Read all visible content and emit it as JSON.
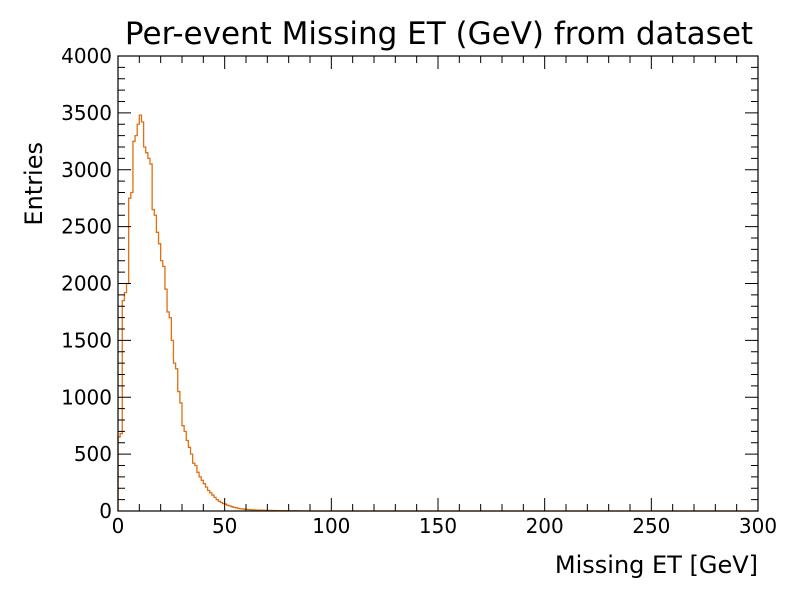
{
  "chart_data": {
    "type": "histogram",
    "title": "Per-event Missing ET (GeV) from dataset",
    "xlabel": "Missing ET [GeV]",
    "ylabel": "Entries",
    "xlim": [
      0,
      300
    ],
    "ylim": [
      0,
      4000
    ],
    "xticks": [
      0,
      50,
      100,
      150,
      200,
      250,
      300
    ],
    "yticks": [
      0,
      500,
      1000,
      1500,
      2000,
      2500,
      3000,
      3500,
      4000
    ],
    "grid": false,
    "legend": "none",
    "series": [
      {
        "color": "#e07010",
        "bin_width": 1,
        "x_start": 0,
        "values": [
          650,
          680,
          1850,
          1920,
          2000,
          2750,
          2800,
          3250,
          3300,
          3400,
          3480,
          3420,
          3200,
          3150,
          3100,
          3050,
          2650,
          2600,
          2450,
          2350,
          2200,
          2150,
          1950,
          1750,
          1700,
          1500,
          1300,
          1250,
          1050,
          950,
          750,
          700,
          620,
          560,
          500,
          420,
          400,
          340,
          300,
          270,
          240,
          210,
          180,
          160,
          140,
          120,
          100,
          85,
          75,
          65,
          60,
          50,
          45,
          38,
          32,
          28,
          24,
          20,
          18,
          16,
          14,
          12,
          11,
          10,
          9,
          8,
          7,
          7,
          6,
          6,
          5,
          5,
          4,
          4,
          4,
          3,
          3,
          3,
          3,
          2,
          2,
          2,
          2,
          2,
          2,
          1,
          1,
          1,
          1,
          1
        ]
      }
    ]
  }
}
